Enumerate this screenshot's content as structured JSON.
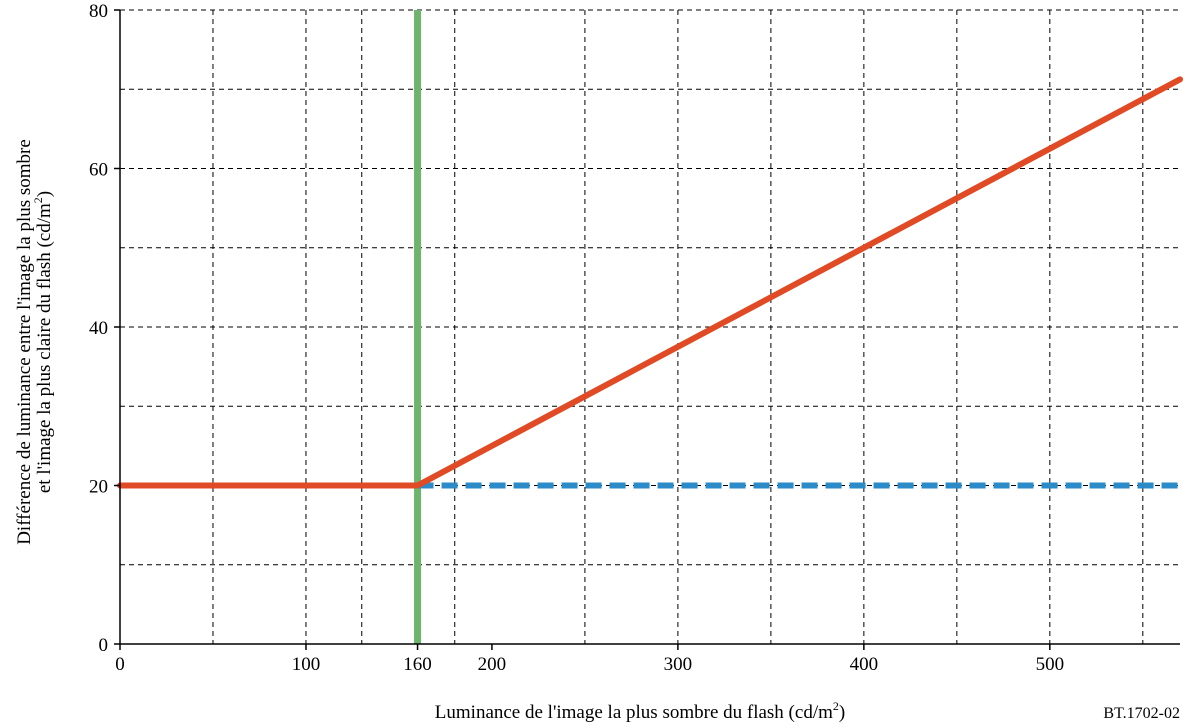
{
  "chart_data": {
    "type": "line",
    "xlabel": {
      "main": "Luminance de l'image la plus sombre du flash  (cd/m",
      "sup": "2",
      "tail": ")"
    },
    "ylabel": {
      "line1": "Différence de luminance entre l'image la plus sombre",
      "line2": {
        "main": "et l'image la plus claire du flash (cd/m",
        "sup": "2",
        "tail": ")"
      }
    },
    "figure_ref": "BT.1702-02",
    "xlim": [
      0,
      570
    ],
    "ylim": [
      0,
      80
    ],
    "x_tick_labels": [
      {
        "value": 0,
        "label": "0"
      },
      {
        "value": 100,
        "label": "100"
      },
      {
        "value": 160,
        "label": "160"
      },
      {
        "value": 200,
        "label": "200"
      },
      {
        "value": 300,
        "label": "300"
      },
      {
        "value": 400,
        "label": "400"
      },
      {
        "value": 500,
        "label": "500"
      }
    ],
    "y_tick_labels": [
      {
        "value": 0,
        "label": "0"
      },
      {
        "value": 20,
        "label": "20"
      },
      {
        "value": 40,
        "label": "40"
      },
      {
        "value": 60,
        "label": "60"
      },
      {
        "value": 80,
        "label": "80"
      }
    ],
    "x_grid": [
      50,
      100,
      130,
      180,
      250,
      300,
      350,
      400,
      450,
      500,
      550
    ],
    "y_grid": [
      10,
      20,
      30,
      40,
      50,
      60,
      70,
      80
    ],
    "grid": true,
    "series": [
      {
        "color": "#e04a24",
        "style": "solid",
        "x": [
          0,
          160,
          570
        ],
        "y": [
          20,
          20,
          71.25
        ]
      },
      {
        "color": "#2b8bc9",
        "style": "dashed",
        "x": [
          160,
          570
        ],
        "y": [
          20,
          20
        ]
      },
      {
        "color": "#6db56d",
        "style": "solid",
        "x": [
          160,
          160
        ],
        "y": [
          0,
          80
        ]
      }
    ]
  }
}
